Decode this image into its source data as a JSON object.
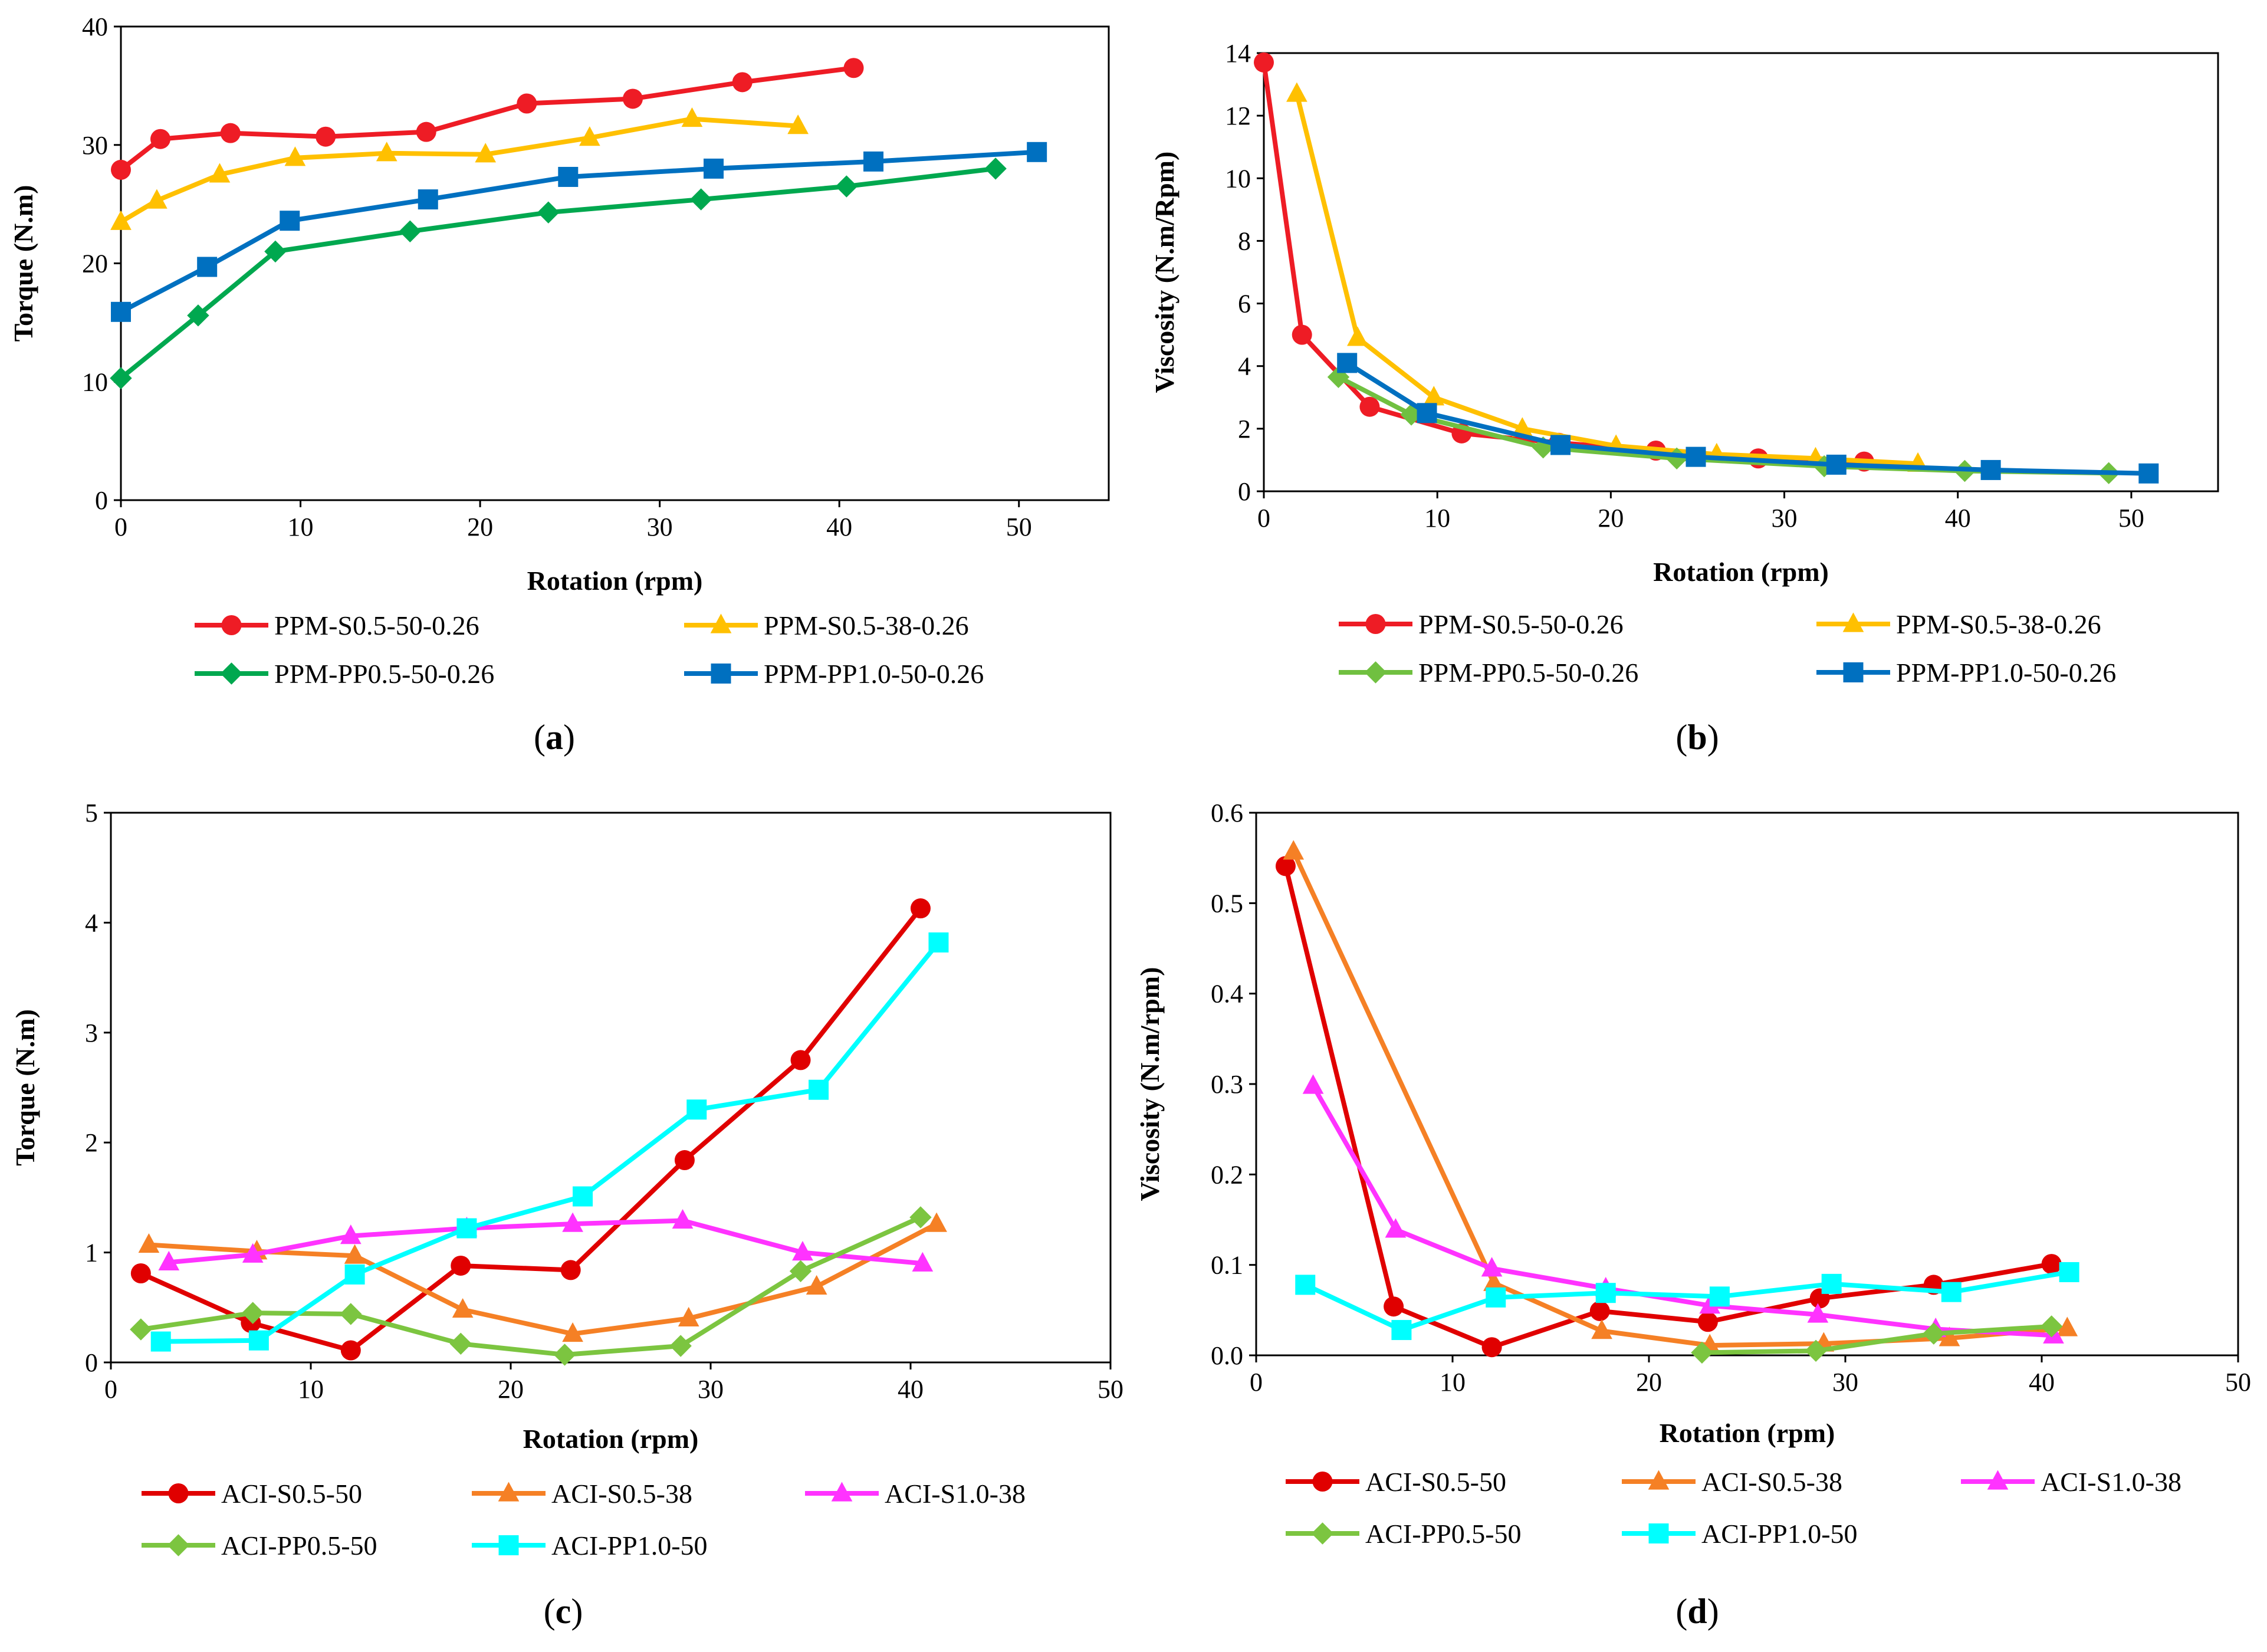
{
  "panels": [
    {
      "id": "a",
      "caption_letter": "a",
      "chart_data": {
        "type": "line",
        "xlabel": "Rotation (rpm)",
        "ylabel": "Torque (N.m)",
        "xlim": [
          0,
          55
        ],
        "ylim": [
          0,
          40
        ],
        "xticks": [
          0,
          10,
          20,
          30,
          40,
          50
        ],
        "yticks": [
          0,
          10,
          20,
          30,
          40
        ],
        "legend_cols": 2,
        "series": [
          {
            "name": "PPM-S0.5-50-0.26",
            "color": "#ee1c25",
            "marker": "circle",
            "x": [
              0,
              2.2,
              6.1,
              11.4,
              17,
              22.6,
              28.5,
              34.6,
              40.8
            ],
            "y": [
              27.9,
              30.5,
              31,
              30.7,
              31.1,
              33.5,
              33.9,
              35.3,
              36.5
            ]
          },
          {
            "name": "PPM-S0.5-38-0.26",
            "color": "#ffc000",
            "marker": "triangle",
            "x": [
              0,
              2,
              5.5,
              9.7,
              14.8,
              20.3,
              26.1,
              31.8,
              37.7
            ],
            "y": [
              23.5,
              25.3,
              27.5,
              28.9,
              29.3,
              29.2,
              30.6,
              32.2,
              31.6
            ]
          },
          {
            "name": "PPM-PP0.5-50-0.26",
            "color": "#00a84f",
            "marker": "diamond",
            "x": [
              0,
              4.3,
              8.6,
              16.1,
              23.8,
              32.3,
              40.4,
              48.7
            ],
            "y": [
              10.3,
              15.6,
              21,
              22.7,
              24.3,
              25.4,
              26.5,
              28
            ]
          },
          {
            "name": "PPM-PP1.0-50-0.26",
            "color": "#0070c0",
            "marker": "square",
            "x": [
              0,
              4.8,
              9.4,
              17.1,
              24.9,
              33,
              41.9,
              51
            ],
            "y": [
              15.9,
              19.7,
              23.6,
              25.4,
              27.3,
              28,
              28.6,
              29.4
            ]
          }
        ]
      }
    },
    {
      "id": "b",
      "caption_letter": "b",
      "chart_data": {
        "type": "line",
        "xlabel": "Rotation (rpm)",
        "ylabel": "Viscosity (N.m/Rpm)",
        "xlim": [
          0,
          55
        ],
        "ylim": [
          0,
          14
        ],
        "xticks": [
          0,
          10,
          20,
          30,
          40,
          50
        ],
        "yticks": [
          0,
          2,
          4,
          6,
          8,
          10,
          12,
          14
        ],
        "legend_cols": 2,
        "series": [
          {
            "name": "PPM-S0.5-50-0.26",
            "color": "#ee1c25",
            "marker": "circle",
            "x": [
              0,
              2.2,
              6.1,
              11.4,
              17,
              22.6,
              28.5,
              34.6
            ],
            "y": [
              13.7,
              5,
              2.7,
              1.85,
              1.55,
              1.3,
              1.05,
              0.95
            ]
          },
          {
            "name": "PPM-S0.5-38-0.26",
            "color": "#ffc000",
            "marker": "triangle",
            "x": [
              1.9,
              5.4,
              9.8,
              14.9,
              20.3,
              26.1,
              31.8,
              37.7
            ],
            "y": [
              12.7,
              4.9,
              3,
              2,
              1.45,
              1.18,
              1.05,
              0.88
            ]
          },
          {
            "name": "PPM-PP0.5-50-0.26",
            "color": "#70c040",
            "marker": "diamond",
            "x": [
              4.3,
              8.5,
              16.1,
              23.8,
              32.3,
              40.4,
              48.7
            ],
            "y": [
              3.65,
              2.45,
              1.4,
              1.05,
              0.8,
              0.65,
              0.58
            ]
          },
          {
            "name": "PPM-PP1.0-50-0.26",
            "color": "#0070c0",
            "marker": "square",
            "x": [
              4.8,
              9.4,
              17.1,
              24.9,
              33,
              41.9,
              51
            ],
            "y": [
              4.1,
              2.5,
              1.48,
              1.1,
              0.85,
              0.68,
              0.57
            ]
          }
        ]
      }
    },
    {
      "id": "c",
      "caption_letter": "c",
      "chart_data": {
        "type": "line",
        "xlabel": "Rotation (rpm)",
        "ylabel": "Torque (N.m)",
        "xlim": [
          0,
          50
        ],
        "ylim": [
          0,
          5
        ],
        "xticks": [
          0,
          10,
          20,
          30,
          40,
          50
        ],
        "yticks": [
          0,
          1,
          2,
          3,
          4,
          5
        ],
        "legend_cols": 3,
        "series": [
          {
            "name": "ACI-S0.5-50",
            "color": "#e00000",
            "marker": "circle",
            "x": [
              1.5,
              7,
              12,
              17.5,
              23,
              28.7,
              34.5,
              40.5
            ],
            "y": [
              0.81,
              0.36,
              0.11,
              0.88,
              0.84,
              1.84,
              2.75,
              4.13
            ]
          },
          {
            "name": "ACI-S0.5-38",
            "color": "#f58025",
            "marker": "triangle",
            "x": [
              1.9,
              7.3,
              12.2,
              17.6,
              23.1,
              28.9,
              35.3,
              41.3
            ],
            "y": [
              1.07,
              1.01,
              0.97,
              0.48,
              0.26,
              0.4,
              0.69,
              1.26
            ]
          },
          {
            "name": "ACI-S1.0-38",
            "color": "#ff33ff",
            "marker": "triangle",
            "x": [
              2.9,
              7.1,
              12,
              17.8,
              23.1,
              28.6,
              34.6,
              40.6
            ],
            "y": [
              0.91,
              0.98,
              1.15,
              1.22,
              1.26,
              1.29,
              1,
              0.9
            ]
          },
          {
            "name": "ACI-PP0.5-50",
            "color": "#7cc540",
            "marker": "diamond",
            "x": [
              1.5,
              7.1,
              12,
              17.5,
              22.7,
              28.5,
              34.5,
              40.5
            ],
            "y": [
              0.3,
              0.45,
              0.44,
              0.17,
              0.07,
              0.15,
              0.83,
              1.32
            ]
          },
          {
            "name": "ACI-PP1.0-50",
            "color": "#00ffff",
            "marker": "square",
            "x": [
              2.5,
              7.4,
              12.2,
              17.8,
              23.6,
              29.3,
              35.4,
              41.4
            ],
            "y": [
              0.19,
              0.2,
              0.8,
              1.22,
              1.51,
              2.3,
              2.48,
              3.82
            ]
          }
        ]
      }
    },
    {
      "id": "d",
      "caption_letter": "d",
      "chart_data": {
        "type": "line",
        "xlabel": "Rotation (rpm)",
        "ylabel": "Viscosity (N.m/rpm)",
        "xlim": [
          0,
          50
        ],
        "ylim": [
          0,
          0.6
        ],
        "xticks": [
          0,
          10,
          20,
          30,
          40,
          50
        ],
        "yticks": [
          0.0,
          0.1,
          0.2,
          0.3,
          0.4,
          0.5,
          0.6
        ],
        "ytick_labels": [
          "0.0",
          "0.1",
          "0.2",
          "0.3",
          "0.4",
          "0.5",
          "0.6"
        ],
        "legend_cols": 3,
        "series": [
          {
            "name": "ACI-S0.5-50",
            "color": "#e00000",
            "marker": "circle",
            "x": [
              1.5,
              7,
              12,
              17.5,
              23,
              28.7,
              34.5,
              40.5
            ],
            "y": [
              0.541,
              0.054,
              0.009,
              0.049,
              0.037,
              0.063,
              0.078,
              0.101
            ]
          },
          {
            "name": "ACI-S0.5-38",
            "color": "#f58025",
            "marker": "triangle",
            "x": [
              1.9,
              12.1,
              17.6,
              23.1,
              28.9,
              35.3,
              41.3
            ],
            "y": [
              0.557,
              0.08,
              0.027,
              0.011,
              0.013,
              0.019,
              0.03
            ]
          },
          {
            "name": "ACI-S1.0-38",
            "color": "#ff33ff",
            "marker": "triangle",
            "x": [
              2.9,
              7.1,
              12,
              17.8,
              23.1,
              28.6,
              34.6,
              40.6
            ],
            "y": [
              0.298,
              0.139,
              0.096,
              0.074,
              0.055,
              0.045,
              0.029,
              0.022
            ]
          },
          {
            "name": "ACI-PP0.5-50",
            "color": "#7cc540",
            "marker": "diamond",
            "x": [
              22.7,
              28.5,
              34.5,
              40.5
            ],
            "y": [
              0.003,
              0.005,
              0.024,
              0.032
            ]
          },
          {
            "name": "ACI-PP1.0-50",
            "color": "#00ffff",
            "marker": "square",
            "x": [
              2.5,
              7.4,
              12.2,
              17.8,
              23.6,
              29.3,
              35.4,
              41.4
            ],
            "y": [
              0.078,
              0.028,
              0.064,
              0.069,
              0.065,
              0.079,
              0.07,
              0.092
            ]
          }
        ]
      }
    }
  ]
}
